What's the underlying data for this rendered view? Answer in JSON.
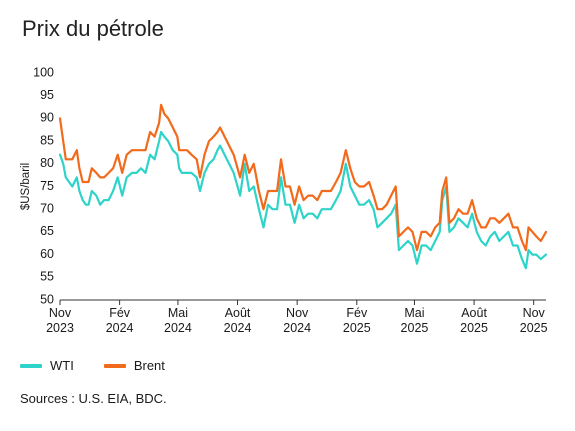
{
  "title": "Prix du pétrole",
  "source": "Sources : U.S. EIA, BDC.",
  "chart_data": {
    "type": "line",
    "ylabel": "$US/baril",
    "ylim": [
      50,
      100
    ],
    "yticks": [
      50,
      55,
      60,
      65,
      70,
      75,
      80,
      85,
      90,
      95,
      100
    ],
    "xlim": [
      "2023-11-01",
      "2025-11-20"
    ],
    "xticks": [
      {
        "date": "2023-11-01",
        "month": "Nov",
        "year": "2023"
      },
      {
        "date": "2024-02-01",
        "month": "Fév",
        "year": "2024"
      },
      {
        "date": "2024-05-01",
        "month": "Mai",
        "year": "2024"
      },
      {
        "date": "2024-08-01",
        "month": "Août",
        "year": "2024"
      },
      {
        "date": "2024-11-01",
        "month": "Nov",
        "year": "2024"
      },
      {
        "date": "2025-02-01",
        "month": "Fév",
        "year": "2025"
      },
      {
        "date": "2025-05-01",
        "month": "Mai",
        "year": "2025"
      },
      {
        "date": "2025-08-01",
        "month": "Août",
        "year": "2025"
      },
      {
        "date": "2025-11-01",
        "month": "Nov",
        "year": "2025"
      }
    ],
    "grid": false,
    "legend": "bottom-left",
    "series": [
      {
        "name": "WTI",
        "color": "#2ed3c9",
        "points": [
          [
            "2023-11-01",
            82
          ],
          [
            "2023-11-06",
            80
          ],
          [
            "2023-11-10",
            77
          ],
          [
            "2023-11-15",
            76
          ],
          [
            "2023-11-20",
            75
          ],
          [
            "2023-11-27",
            77
          ],
          [
            "2023-12-01",
            74
          ],
          [
            "2023-12-06",
            72
          ],
          [
            "2023-12-11",
            71
          ],
          [
            "2023-12-15",
            71
          ],
          [
            "2023-12-20",
            74
          ],
          [
            "2023-12-27",
            73
          ],
          [
            "2024-01-02",
            71
          ],
          [
            "2024-01-08",
            72
          ],
          [
            "2024-01-15",
            72
          ],
          [
            "2024-01-22",
            74
          ],
          [
            "2024-01-29",
            77
          ],
          [
            "2024-02-05",
            73
          ],
          [
            "2024-02-12",
            77
          ],
          [
            "2024-02-20",
            78
          ],
          [
            "2024-02-27",
            78
          ],
          [
            "2024-03-05",
            79
          ],
          [
            "2024-03-12",
            78
          ],
          [
            "2024-03-19",
            82
          ],
          [
            "2024-03-26",
            81
          ],
          [
            "2024-04-02",
            85
          ],
          [
            "2024-04-05",
            87
          ],
          [
            "2024-04-10",
            86
          ],
          [
            "2024-04-16",
            85
          ],
          [
            "2024-04-23",
            83
          ],
          [
            "2024-04-30",
            82
          ],
          [
            "2024-05-03",
            79
          ],
          [
            "2024-05-07",
            78
          ],
          [
            "2024-05-15",
            78
          ],
          [
            "2024-05-22",
            78
          ],
          [
            "2024-05-30",
            77
          ],
          [
            "2024-06-04",
            74
          ],
          [
            "2024-06-11",
            78
          ],
          [
            "2024-06-18",
            80
          ],
          [
            "2024-06-25",
            81
          ],
          [
            "2024-07-01",
            83
          ],
          [
            "2024-07-05",
            84
          ],
          [
            "2024-07-12",
            82
          ],
          [
            "2024-07-19",
            80
          ],
          [
            "2024-07-26",
            78
          ],
          [
            "2024-08-05",
            73
          ],
          [
            "2024-08-12",
            80
          ],
          [
            "2024-08-19",
            74
          ],
          [
            "2024-08-26",
            75
          ],
          [
            "2024-09-03",
            70
          ],
          [
            "2024-09-10",
            66
          ],
          [
            "2024-09-17",
            71
          ],
          [
            "2024-09-24",
            70
          ],
          [
            "2024-10-01",
            70
          ],
          [
            "2024-10-07",
            77
          ],
          [
            "2024-10-14",
            71
          ],
          [
            "2024-10-21",
            71
          ],
          [
            "2024-10-28",
            67
          ],
          [
            "2024-11-04",
            71
          ],
          [
            "2024-11-11",
            68
          ],
          [
            "2024-11-18",
            69
          ],
          [
            "2024-11-25",
            69
          ],
          [
            "2024-12-02",
            68
          ],
          [
            "2024-12-09",
            70
          ],
          [
            "2024-12-16",
            70
          ],
          [
            "2024-12-23",
            70
          ],
          [
            "2024-12-31",
            72
          ],
          [
            "2025-01-07",
            74
          ],
          [
            "2025-01-15",
            80
          ],
          [
            "2025-01-22",
            75
          ],
          [
            "2025-01-29",
            73
          ],
          [
            "2025-02-05",
            71
          ],
          [
            "2025-02-12",
            71
          ],
          [
            "2025-02-20",
            72
          ],
          [
            "2025-02-27",
            70
          ],
          [
            "2025-03-05",
            66
          ],
          [
            "2025-03-12",
            67
          ],
          [
            "2025-03-19",
            68
          ],
          [
            "2025-03-26",
            69
          ],
          [
            "2025-04-02",
            71
          ],
          [
            "2025-04-07",
            61
          ],
          [
            "2025-04-14",
            62
          ],
          [
            "2025-04-21",
            63
          ],
          [
            "2025-04-28",
            62
          ],
          [
            "2025-05-05",
            58
          ],
          [
            "2025-05-12",
            62
          ],
          [
            "2025-05-19",
            62
          ],
          [
            "2025-05-26",
            61
          ],
          [
            "2025-06-02",
            63
          ],
          [
            "2025-06-09",
            65
          ],
          [
            "2025-06-13",
            72
          ],
          [
            "2025-06-19",
            75
          ],
          [
            "2025-06-24",
            65
          ],
          [
            "2025-07-01",
            66
          ],
          [
            "2025-07-08",
            68
          ],
          [
            "2025-07-15",
            67
          ],
          [
            "2025-07-22",
            66
          ],
          [
            "2025-07-29",
            69
          ],
          [
            "2025-08-05",
            65
          ],
          [
            "2025-08-12",
            63
          ],
          [
            "2025-08-19",
            62
          ],
          [
            "2025-08-26",
            64
          ],
          [
            "2025-09-02",
            65
          ],
          [
            "2025-09-09",
            63
          ],
          [
            "2025-09-16",
            64
          ],
          [
            "2025-09-23",
            65
          ],
          [
            "2025-09-30",
            62
          ],
          [
            "2025-10-07",
            62
          ],
          [
            "2025-10-14",
            59
          ],
          [
            "2025-10-20",
            57
          ],
          [
            "2025-10-24",
            61
          ],
          [
            "2025-10-30",
            60
          ],
          [
            "2025-11-05",
            60
          ],
          [
            "2025-11-12",
            59
          ],
          [
            "2025-11-20",
            60
          ]
        ]
      },
      {
        "name": "Brent",
        "color": "#f26a1b",
        "points": [
          [
            "2023-11-01",
            90
          ],
          [
            "2023-11-06",
            85
          ],
          [
            "2023-11-10",
            81
          ],
          [
            "2023-11-15",
            81
          ],
          [
            "2023-11-20",
            81
          ],
          [
            "2023-11-27",
            83
          ],
          [
            "2023-12-01",
            79
          ],
          [
            "2023-12-06",
            76
          ],
          [
            "2023-12-11",
            76
          ],
          [
            "2023-12-15",
            76
          ],
          [
            "2023-12-20",
            79
          ],
          [
            "2023-12-27",
            78
          ],
          [
            "2024-01-02",
            77
          ],
          [
            "2024-01-08",
            77
          ],
          [
            "2024-01-15",
            78
          ],
          [
            "2024-01-22",
            79
          ],
          [
            "2024-01-29",
            82
          ],
          [
            "2024-02-05",
            78
          ],
          [
            "2024-02-12",
            82
          ],
          [
            "2024-02-20",
            83
          ],
          [
            "2024-02-27",
            83
          ],
          [
            "2024-03-05",
            83
          ],
          [
            "2024-03-12",
            83
          ],
          [
            "2024-03-19",
            87
          ],
          [
            "2024-03-26",
            86
          ],
          [
            "2024-04-02",
            89
          ],
          [
            "2024-04-05",
            93
          ],
          [
            "2024-04-10",
            91
          ],
          [
            "2024-04-16",
            90
          ],
          [
            "2024-04-23",
            88
          ],
          [
            "2024-04-30",
            86
          ],
          [
            "2024-05-03",
            83
          ],
          [
            "2024-05-07",
            83
          ],
          [
            "2024-05-15",
            83
          ],
          [
            "2024-05-22",
            82
          ],
          [
            "2024-05-30",
            81
          ],
          [
            "2024-06-04",
            77
          ],
          [
            "2024-06-11",
            82
          ],
          [
            "2024-06-18",
            85
          ],
          [
            "2024-06-25",
            86
          ],
          [
            "2024-07-01",
            87
          ],
          [
            "2024-07-05",
            88
          ],
          [
            "2024-07-12",
            86
          ],
          [
            "2024-07-19",
            84
          ],
          [
            "2024-07-26",
            82
          ],
          [
            "2024-08-05",
            77
          ],
          [
            "2024-08-12",
            82
          ],
          [
            "2024-08-19",
            78
          ],
          [
            "2024-08-26",
            80
          ],
          [
            "2024-09-03",
            74
          ],
          [
            "2024-09-10",
            70
          ],
          [
            "2024-09-17",
            74
          ],
          [
            "2024-09-24",
            74
          ],
          [
            "2024-10-01",
            74
          ],
          [
            "2024-10-07",
            81
          ],
          [
            "2024-10-14",
            75
          ],
          [
            "2024-10-21",
            75
          ],
          [
            "2024-10-28",
            71
          ],
          [
            "2024-11-04",
            75
          ],
          [
            "2024-11-11",
            72
          ],
          [
            "2024-11-18",
            73
          ],
          [
            "2024-11-25",
            73
          ],
          [
            "2024-12-02",
            72
          ],
          [
            "2024-12-09",
            74
          ],
          [
            "2024-12-16",
            74
          ],
          [
            "2024-12-23",
            74
          ],
          [
            "2024-12-31",
            76
          ],
          [
            "2025-01-07",
            78
          ],
          [
            "2025-01-15",
            83
          ],
          [
            "2025-01-22",
            79
          ],
          [
            "2025-01-29",
            76
          ],
          [
            "2025-02-05",
            75
          ],
          [
            "2025-02-12",
            75
          ],
          [
            "2025-02-20",
            76
          ],
          [
            "2025-02-27",
            73
          ],
          [
            "2025-03-05",
            70
          ],
          [
            "2025-03-12",
            70
          ],
          [
            "2025-03-19",
            71
          ],
          [
            "2025-03-26",
            73
          ],
          [
            "2025-04-02",
            75
          ],
          [
            "2025-04-07",
            64
          ],
          [
            "2025-04-14",
            65
          ],
          [
            "2025-04-21",
            66
          ],
          [
            "2025-04-28",
            65
          ],
          [
            "2025-05-05",
            61
          ],
          [
            "2025-05-12",
            65
          ],
          [
            "2025-05-19",
            65
          ],
          [
            "2025-05-26",
            64
          ],
          [
            "2025-06-02",
            66
          ],
          [
            "2025-06-09",
            67
          ],
          [
            "2025-06-13",
            74
          ],
          [
            "2025-06-19",
            77
          ],
          [
            "2025-06-24",
            67
          ],
          [
            "2025-07-01",
            68
          ],
          [
            "2025-07-08",
            70
          ],
          [
            "2025-07-15",
            69
          ],
          [
            "2025-07-22",
            69
          ],
          [
            "2025-07-29",
            72
          ],
          [
            "2025-08-05",
            68
          ],
          [
            "2025-08-12",
            66
          ],
          [
            "2025-08-19",
            66
          ],
          [
            "2025-08-26",
            68
          ],
          [
            "2025-09-02",
            68
          ],
          [
            "2025-09-09",
            67
          ],
          [
            "2025-09-16",
            68
          ],
          [
            "2025-09-23",
            69
          ],
          [
            "2025-09-30",
            66
          ],
          [
            "2025-10-07",
            66
          ],
          [
            "2025-10-14",
            63
          ],
          [
            "2025-10-20",
            61
          ],
          [
            "2025-10-24",
            66
          ],
          [
            "2025-10-30",
            65
          ],
          [
            "2025-11-05",
            64
          ],
          [
            "2025-11-12",
            63
          ],
          [
            "2025-11-20",
            65
          ]
        ]
      }
    ]
  }
}
